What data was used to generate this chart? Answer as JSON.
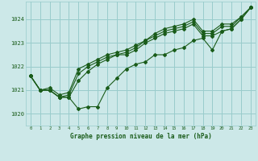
{
  "title": "Graphe pression niveau de la mer (hPa)",
  "bg_color": "#cce8e8",
  "grid_color": "#99cccc",
  "line_color": "#1a5c1a",
  "x_ticks": [
    0,
    1,
    2,
    3,
    4,
    5,
    6,
    7,
    8,
    9,
    10,
    11,
    12,
    13,
    14,
    15,
    16,
    17,
    18,
    19,
    20,
    21,
    22,
    23
  ],
  "ylim": [
    1019.5,
    1024.75
  ],
  "yticks": [
    1020,
    1021,
    1022,
    1023,
    1024
  ],
  "series": [
    [
      1021.6,
      1021.0,
      1021.0,
      1020.7,
      1020.7,
      1020.2,
      1020.3,
      1020.3,
      1021.1,
      1021.5,
      1021.9,
      1022.1,
      1022.2,
      1022.5,
      1022.5,
      1022.7,
      1022.8,
      1023.1,
      1023.2,
      1022.7,
      1023.5,
      1023.6,
      1024.0,
      1024.5
    ],
    [
      1021.6,
      1021.0,
      1021.0,
      1020.7,
      1020.7,
      1021.4,
      1021.8,
      1022.1,
      1022.3,
      1022.5,
      1022.5,
      1022.7,
      1023.0,
      1023.2,
      1023.4,
      1023.5,
      1023.6,
      1023.8,
      1023.3,
      1023.3,
      1023.5,
      1023.6,
      1024.0,
      1024.5
    ],
    [
      1021.6,
      1021.0,
      1021.0,
      1020.7,
      1020.8,
      1021.7,
      1022.0,
      1022.2,
      1022.4,
      1022.5,
      1022.6,
      1022.8,
      1023.1,
      1023.3,
      1023.5,
      1023.6,
      1023.7,
      1023.9,
      1023.4,
      1023.4,
      1023.7,
      1023.7,
      1024.1,
      1024.5
    ],
    [
      1021.6,
      1021.0,
      1021.1,
      1020.8,
      1020.9,
      1021.9,
      1022.1,
      1022.3,
      1022.5,
      1022.6,
      1022.7,
      1022.9,
      1023.1,
      1023.4,
      1023.6,
      1023.7,
      1023.8,
      1024.0,
      1023.5,
      1023.5,
      1023.8,
      1023.8,
      1024.1,
      1024.5
    ]
  ]
}
